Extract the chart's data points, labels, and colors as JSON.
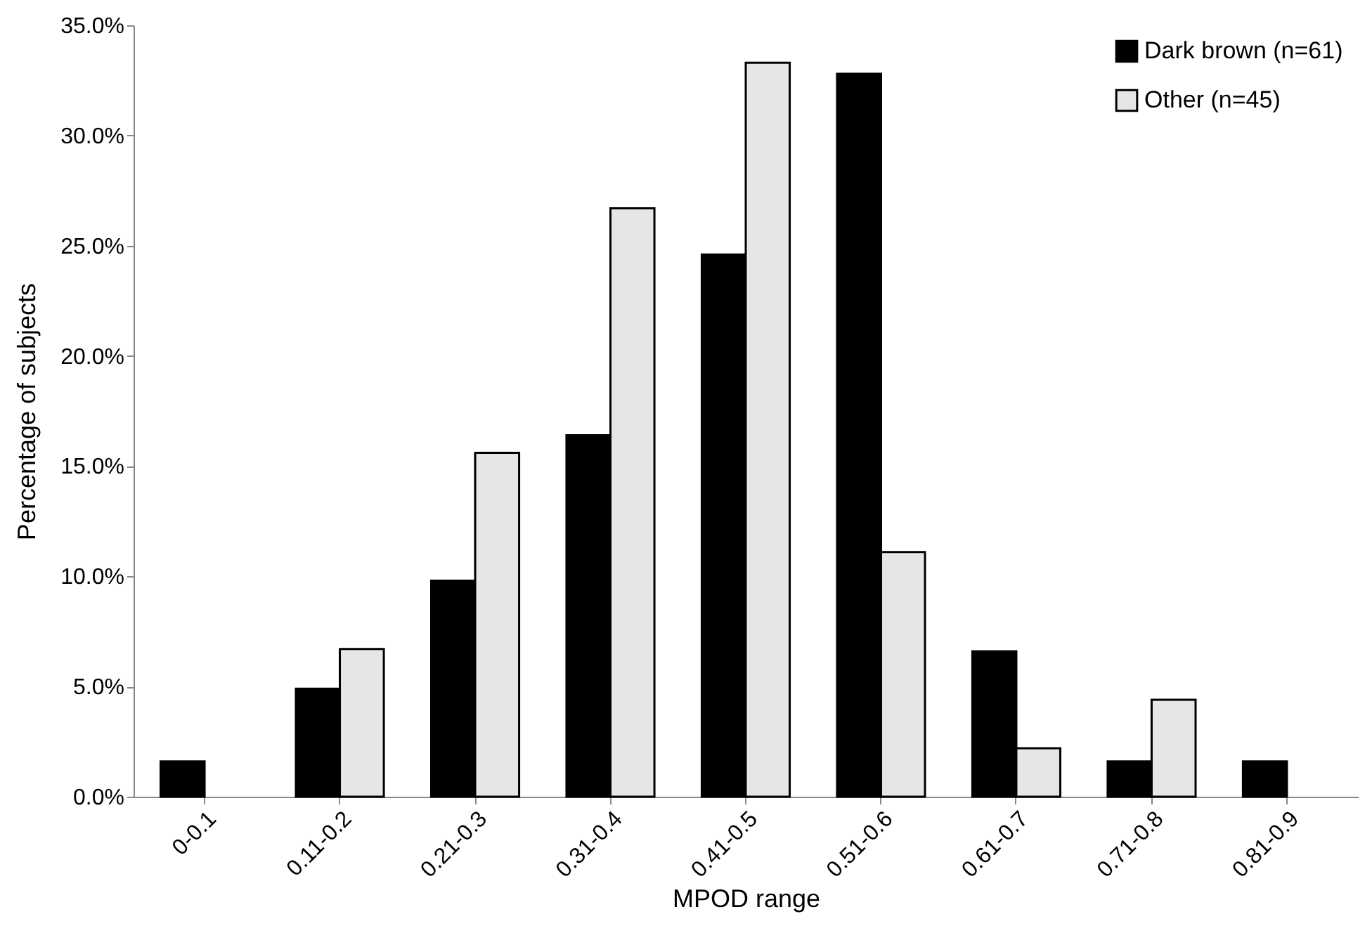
{
  "chart_data": {
    "type": "bar",
    "xlabel": "MPOD range",
    "ylabel": "Percentage of subjects",
    "categories": [
      "0-0.1",
      "0.11-0.2",
      "0.21-0.3",
      "0.31-0.4",
      "0.41-0.5",
      "0.51-0.6",
      "0.61-0.7",
      "0.71-0.8",
      "0.81-0.9"
    ],
    "series": [
      {
        "name": "Dark brown (n=61)",
        "color": "#000000",
        "values": [
          1.6,
          4.9,
          9.8,
          16.4,
          24.6,
          32.8,
          6.6,
          1.6,
          1.6
        ]
      },
      {
        "name": "Other (n=45)",
        "color": "#e6e6e6",
        "values": [
          0,
          6.7,
          15.6,
          26.7,
          33.3,
          11.1,
          2.2,
          4.4,
          0
        ]
      }
    ],
    "ylim": [
      0,
      35
    ],
    "yticks": [
      {
        "value": 0,
        "label": "0.0%"
      },
      {
        "value": 5,
        "label": "5.0%"
      },
      {
        "value": 10,
        "label": "10.0%"
      },
      {
        "value": 15,
        "label": "15.0%"
      },
      {
        "value": 20,
        "label": "20.0%"
      },
      {
        "value": 25,
        "label": "25.0%"
      },
      {
        "value": 30,
        "label": "30.0%"
      },
      {
        "value": 35,
        "label": "35.0%"
      }
    ],
    "grid": false,
    "legend": "top right"
  }
}
